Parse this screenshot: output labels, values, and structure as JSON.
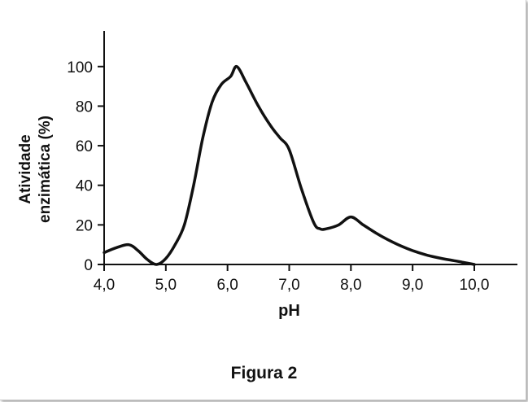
{
  "caption": "Figura 2",
  "chart_data": {
    "type": "line",
    "xlabel": "pH",
    "ylabel_line1": "Atividade",
    "ylabel_line2": "enzimática (%)",
    "xlim": [
      4.0,
      10.3
    ],
    "ylim": [
      0,
      118
    ],
    "xticks": [
      4.0,
      5.0,
      6.0,
      7.0,
      8.0,
      9.0,
      10.0
    ],
    "xtick_labels": [
      "4,0",
      "5,0",
      "6,0",
      "7,0",
      "8,0",
      "9,0",
      "10,0"
    ],
    "yticks": [
      0,
      20,
      40,
      60,
      80,
      100
    ],
    "ytick_labels": [
      "0",
      "20",
      "40",
      "60",
      "80",
      "100"
    ],
    "grid": false,
    "line_color": "#111111",
    "series": [
      {
        "x": [
          4.0,
          4.2,
          4.4,
          4.55,
          4.7,
          4.85,
          5.0,
          5.15,
          5.3,
          5.45,
          5.6,
          5.75,
          5.9,
          6.05,
          6.15,
          6.3,
          6.5,
          6.7,
          6.85,
          7.0,
          7.2,
          7.4,
          7.5,
          7.6,
          7.8,
          8.0,
          8.2,
          8.4,
          8.6,
          8.8,
          9.0,
          9.2,
          9.4,
          9.6,
          9.8,
          10.0
        ],
        "y": [
          6,
          8.5,
          10,
          7,
          2.5,
          0,
          3,
          10,
          20,
          40,
          64,
          82,
          91,
          95,
          100,
          92,
          80,
          70,
          64,
          58,
          38,
          21,
          18,
          18,
          20,
          24,
          20,
          16,
          12.5,
          9.5,
          7,
          5,
          3.5,
          2.3,
          1.2,
          0
        ]
      }
    ]
  }
}
